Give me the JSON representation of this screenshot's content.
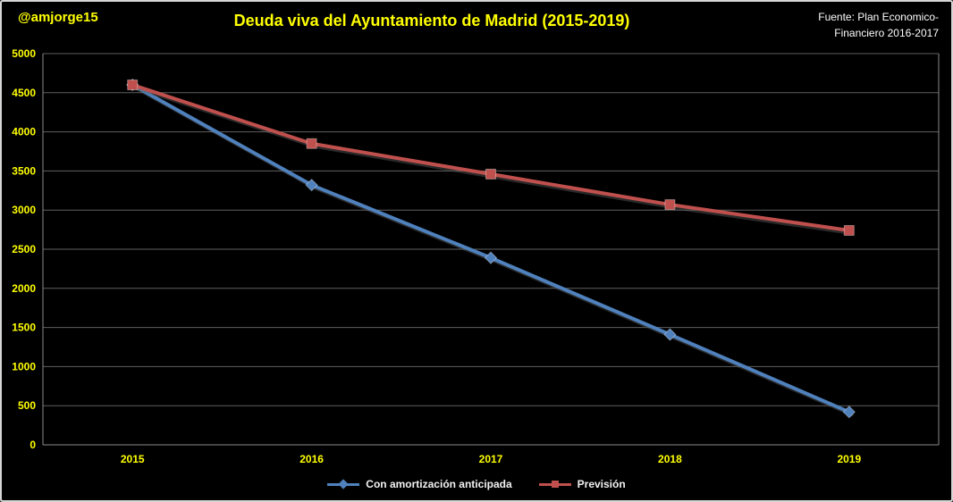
{
  "header": {
    "handle": "@amjorge15",
    "source_line1": "Fuente: Plan Economico-",
    "source_line2": "Financiero 2016-2017"
  },
  "chart_data": {
    "type": "line",
    "title": "Deuda viva del Ayuntamiento de Madrid (2015-2019)",
    "categories": [
      "2015",
      "2016",
      "2017",
      "2018",
      "2019"
    ],
    "series": [
      {
        "name": "Con amortización anticipada",
        "color": "#4f81bd",
        "marker": "diamond",
        "values": [
          4600,
          3320,
          2390,
          1410,
          420
        ]
      },
      {
        "name": "Previsión",
        "color": "#c0504d",
        "marker": "square",
        "values": [
          4600,
          3850,
          3460,
          3070,
          2740
        ]
      }
    ],
    "xlabel": "",
    "ylabel": "",
    "ylim": [
      0,
      5000
    ],
    "ytick_step": 500,
    "grid": true,
    "legend_position": "bottom",
    "colors": {
      "background": "#000000",
      "text_accent": "#ffff00",
      "text_plain": "#ffffff",
      "gridline": "#5f5f5f",
      "axis_line": "#8a8a8a"
    }
  }
}
